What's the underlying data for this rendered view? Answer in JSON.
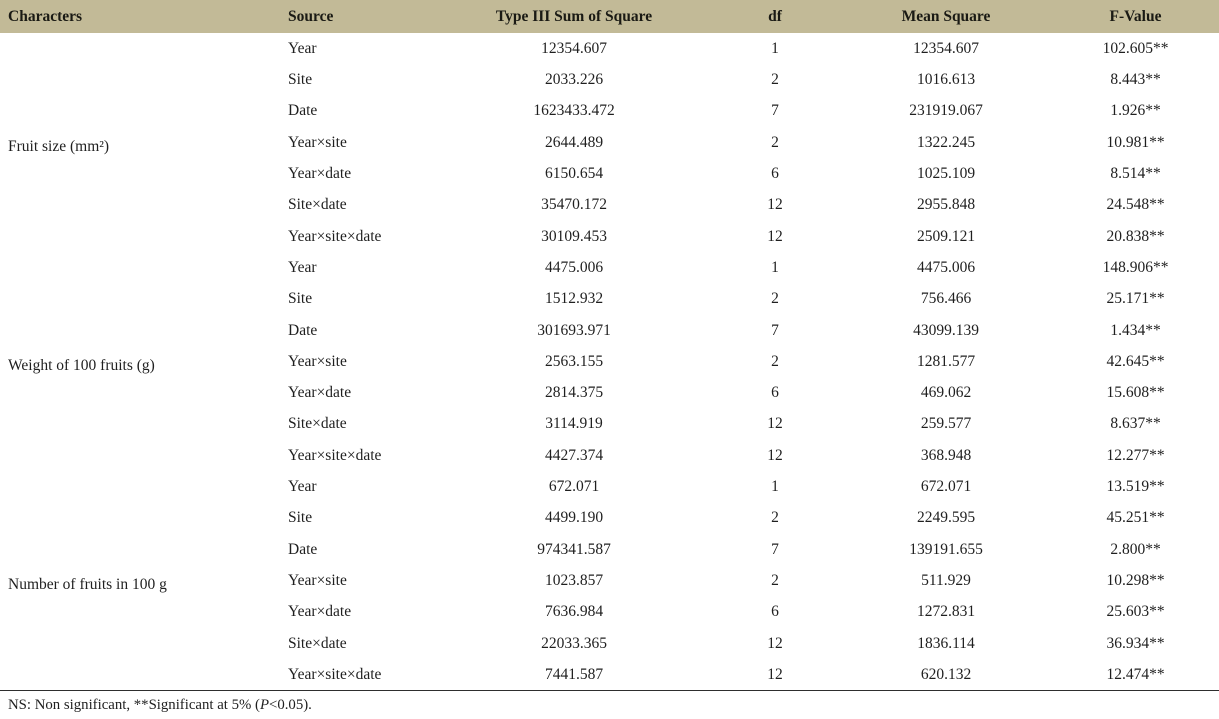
{
  "theme": {
    "header_bg": "#c2ba97",
    "text_color": "#1f1f1f",
    "rule_color": "#2e2e2e"
  },
  "table": {
    "columns": [
      "Characters",
      "Source",
      "Type III Sum of Square",
      "df",
      "Mean Square",
      "F-Value"
    ],
    "groups": [
      {
        "character": "Fruit size (mm²)",
        "rows": [
          {
            "source": "Year",
            "sum_of_square": "12354.607",
            "df": "1",
            "mean_square": "12354.607",
            "f_value": "102.605**"
          },
          {
            "source": "Site",
            "sum_of_square": "2033.226",
            "df": "2",
            "mean_square": "1016.613",
            "f_value": "8.443**"
          },
          {
            "source": "Date",
            "sum_of_square": "1623433.472",
            "df": "7",
            "mean_square": "231919.067",
            "f_value": "1.926**"
          },
          {
            "source": "Year×site",
            "sum_of_square": "2644.489",
            "df": "2",
            "mean_square": "1322.245",
            "f_value": "10.981**"
          },
          {
            "source": "Year×date",
            "sum_of_square": "6150.654",
            "df": "6",
            "mean_square": "1025.109",
            "f_value": "8.514**"
          },
          {
            "source": "Site×date",
            "sum_of_square": "35470.172",
            "df": "12",
            "mean_square": "2955.848",
            "f_value": "24.548**"
          },
          {
            "source": "Year×site×date",
            "sum_of_square": "30109.453",
            "df": "12",
            "mean_square": "2509.121",
            "f_value": "20.838**"
          }
        ]
      },
      {
        "character": "Weight of 100 fruits (g)",
        "rows": [
          {
            "source": "Year",
            "sum_of_square": "4475.006",
            "df": "1",
            "mean_square": "4475.006",
            "f_value": "148.906**"
          },
          {
            "source": "Site",
            "sum_of_square": "1512.932",
            "df": "2",
            "mean_square": "756.466",
            "f_value": "25.171**"
          },
          {
            "source": "Date",
            "sum_of_square": "301693.971",
            "df": "7",
            "mean_square": "43099.139",
            "f_value": "1.434**"
          },
          {
            "source": "Year×site",
            "sum_of_square": "2563.155",
            "df": "2",
            "mean_square": "1281.577",
            "f_value": "42.645**"
          },
          {
            "source": "Year×date",
            "sum_of_square": "2814.375",
            "df": "6",
            "mean_square": "469.062",
            "f_value": "15.608**"
          },
          {
            "source": "Site×date",
            "sum_of_square": "3114.919",
            "df": "12",
            "mean_square": "259.577",
            "f_value": "8.637**"
          },
          {
            "source": "Year×site×date",
            "sum_of_square": "4427.374",
            "df": "12",
            "mean_square": "368.948",
            "f_value": "12.277**"
          }
        ]
      },
      {
        "character": "Number of fruits in 100 g",
        "rows": [
          {
            "source": "Year",
            "sum_of_square": "672.071",
            "df": "1",
            "mean_square": "672.071",
            "f_value": "13.519**"
          },
          {
            "source": "Site",
            "sum_of_square": "4499.190",
            "df": "2",
            "mean_square": "2249.595",
            "f_value": "45.251**"
          },
          {
            "source": "Date",
            "sum_of_square": "974341.587",
            "df": "7",
            "mean_square": "139191.655",
            "f_value": "2.800**"
          },
          {
            "source": "Year×site",
            "sum_of_square": "1023.857",
            "df": "2",
            "mean_square": "511.929",
            "f_value": "10.298**"
          },
          {
            "source": "Year×date",
            "sum_of_square": "7636.984",
            "df": "6",
            "mean_square": "1272.831",
            "f_value": "25.603**"
          },
          {
            "source": "Site×date",
            "sum_of_square": "22033.365",
            "df": "12",
            "mean_square": "1836.114",
            "f_value": "36.934**"
          },
          {
            "source": "Year×site×date",
            "sum_of_square": "7441.587",
            "df": "12",
            "mean_square": "620.132",
            "f_value": "12.474**"
          }
        ]
      }
    ]
  },
  "footnote": {
    "prefix": "NS: Non significant, **Significant at 5% (",
    "italic": "P",
    "suffix": "<0.05)."
  }
}
